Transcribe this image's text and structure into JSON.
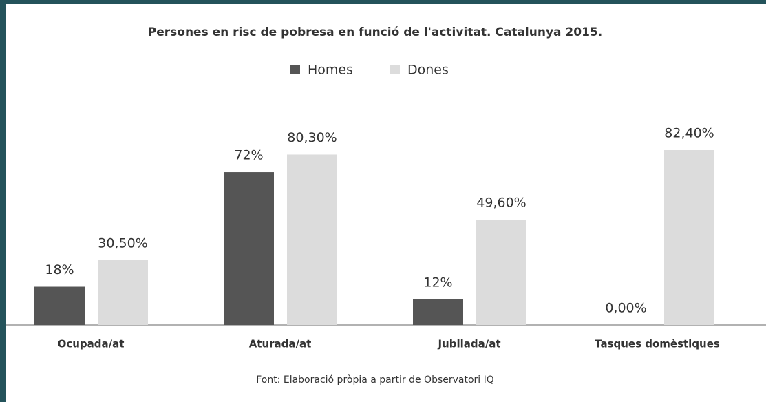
{
  "chart_data": {
    "type": "bar",
    "title": "Persones en risc de pobresa en funció de l'activitat. Catalunya 2015.",
    "categories": [
      "Ocupada/at",
      "Aturada/at",
      "Jubilada/at",
      "Tasques domèstiques"
    ],
    "series": [
      {
        "name": "Homes",
        "color": "#555555",
        "values": [
          18,
          72,
          12,
          0
        ],
        "value_labels": [
          "18%",
          "72%",
          "12%",
          "0,00%"
        ]
      },
      {
        "name": "Dones",
        "color": "#dcdcdc",
        "values": [
          30.5,
          80.3,
          49.6,
          82.4
        ],
        "value_labels": [
          "30,50%",
          "80,30%",
          "49,60%",
          "82,40%"
        ]
      }
    ],
    "source": "Font: Elaboració pròpia a partir de Observatori IQ"
  }
}
